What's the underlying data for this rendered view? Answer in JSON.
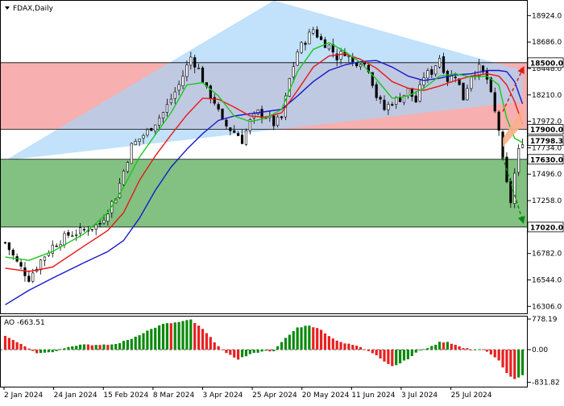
{
  "symbol": {
    "name": "FDAX,Daily",
    "arrow": "triangle-down-icon"
  },
  "colors": {
    "up": "#000000",
    "down": "#000000",
    "ma_fast": "#18c818",
    "ma_mid": "#e81818",
    "ma_slow": "#1818c8",
    "ao_up": "#0a8a0a",
    "ao_down": "#e82020",
    "zone_resistance": "#f47a7a",
    "zone_support": "#3f9f3f",
    "triangle": "#a8d4f8",
    "arrow_up": "#e81818",
    "arrow_down": "#0a8a0a",
    "projection": "#f7b08a",
    "label_bg": "#ffffff",
    "grid": "#000000"
  },
  "chart_data": [
    {
      "type": "candlestick",
      "title": "FDAX,Daily",
      "ylim": [
        16250,
        19050
      ],
      "y_ticks": [
        "18924.0",
        "18686.0",
        "18448.0",
        "18210.0",
        "17972.0",
        "17734.0",
        "17496.0",
        "17258.0",
        "16782.0",
        "16544.0",
        "16306.0"
      ],
      "x_ticks": [
        "2 Jan 2024",
        "24 Jan 2024",
        "15 Feb 2024",
        "8 Mar 2024",
        "3 Apr 2024",
        "25 Apr 2024",
        "20 May 2024",
        "11 Jun 2024",
        "3 Jul 2024",
        "25 Jul 2024"
      ],
      "levels": [
        {
          "label": "18500.0",
          "value": 18500
        },
        {
          "label": "17900.0",
          "value": 17900
        },
        {
          "label": "17630.0",
          "value": 17630
        },
        {
          "label": "17020.0",
          "value": 17020
        }
      ],
      "current_price": {
        "label": "17798.3",
        "value": 17798.3
      },
      "resistance_zone": [
        17900,
        18500
      ],
      "support_zone": [
        17020,
        17630
      ],
      "anchors": [
        [
          0,
          16880
        ],
        [
          3,
          16700
        ],
        [
          6,
          16560
        ],
        [
          9,
          16720
        ],
        [
          12,
          16850
        ],
        [
          16,
          16950
        ],
        [
          20,
          16990
        ],
        [
          24,
          17050
        ],
        [
          28,
          17300
        ],
        [
          32,
          17750
        ],
        [
          36,
          17880
        ],
        [
          40,
          18050
        ],
        [
          44,
          18300
        ],
        [
          47,
          18550
        ],
        [
          49,
          18440
        ],
        [
          51,
          18250
        ],
        [
          53,
          18150
        ],
        [
          55,
          17960
        ],
        [
          57,
          17900
        ],
        [
          59,
          17850
        ],
        [
          60,
          17800
        ],
        [
          62,
          17970
        ],
        [
          64,
          18050
        ],
        [
          66,
          18020
        ],
        [
          68,
          17950
        ],
        [
          70,
          18000
        ],
        [
          72,
          18350
        ],
        [
          74,
          18600
        ],
        [
          76,
          18700
        ],
        [
          78,
          18800
        ],
        [
          80,
          18700
        ],
        [
          82,
          18650
        ],
        [
          84,
          18550
        ],
        [
          86,
          18600
        ],
        [
          88,
          18500
        ],
        [
          90,
          18520
        ],
        [
          92,
          18450
        ],
        [
          94,
          18200
        ],
        [
          96,
          18080
        ],
        [
          98,
          18150
        ],
        [
          100,
          18180
        ],
        [
          102,
          18250
        ],
        [
          104,
          18150
        ],
        [
          106,
          18380
        ],
        [
          108,
          18420
        ],
        [
          110,
          18550
        ],
        [
          112,
          18350
        ],
        [
          114,
          18400
        ],
        [
          116,
          18180
        ],
        [
          118,
          18400
        ],
        [
          120,
          18450
        ],
        [
          122,
          18350
        ],
        [
          124,
          18050
        ],
        [
          125,
          17900
        ],
        [
          126,
          17600
        ],
        [
          127,
          17400
        ],
        [
          128,
          17250
        ],
        [
          129,
          17500
        ],
        [
          130,
          17700
        ],
        [
          131,
          17798
        ]
      ],
      "ma_fast": [
        [
          0,
          16750
        ],
        [
          6,
          16720
        ],
        [
          12,
          16800
        ],
        [
          20,
          16960
        ],
        [
          26,
          17150
        ],
        [
          30,
          17380
        ],
        [
          34,
          17650
        ],
        [
          38,
          17850
        ],
        [
          42,
          18050
        ],
        [
          46,
          18300
        ],
        [
          50,
          18320
        ],
        [
          54,
          18200
        ],
        [
          58,
          18020
        ],
        [
          62,
          17970
        ],
        [
          66,
          18000
        ],
        [
          70,
          18080
        ],
        [
          74,
          18420
        ],
        [
          78,
          18620
        ],
        [
          82,
          18680
        ],
        [
          86,
          18600
        ],
        [
          90,
          18500
        ],
        [
          94,
          18350
        ],
        [
          98,
          18180
        ],
        [
          102,
          18200
        ],
        [
          106,
          18270
        ],
        [
          110,
          18380
        ],
        [
          114,
          18400
        ],
        [
          118,
          18370
        ],
        [
          122,
          18380
        ],
        [
          125,
          18300
        ],
        [
          127,
          18000
        ],
        [
          129,
          17820
        ],
        [
          131,
          17780
        ]
      ],
      "ma_mid": [
        [
          0,
          16650
        ],
        [
          6,
          16620
        ],
        [
          12,
          16660
        ],
        [
          20,
          16850
        ],
        [
          26,
          16990
        ],
        [
          30,
          17150
        ],
        [
          34,
          17440
        ],
        [
          38,
          17660
        ],
        [
          42,
          17850
        ],
        [
          46,
          18030
        ],
        [
          50,
          18180
        ],
        [
          54,
          18170
        ],
        [
          58,
          18100
        ],
        [
          62,
          18020
        ],
        [
          66,
          18010
        ],
        [
          70,
          18050
        ],
        [
          74,
          18250
        ],
        [
          78,
          18460
        ],
        [
          82,
          18560
        ],
        [
          86,
          18580
        ],
        [
          90,
          18530
        ],
        [
          94,
          18450
        ],
        [
          98,
          18330
        ],
        [
          102,
          18270
        ],
        [
          106,
          18250
        ],
        [
          110,
          18290
        ],
        [
          114,
          18340
        ],
        [
          118,
          18380
        ],
        [
          122,
          18400
        ],
        [
          125,
          18380
        ],
        [
          127,
          18300
        ],
        [
          129,
          18150
        ],
        [
          131,
          17950
        ]
      ],
      "ma_slow": [
        [
          0,
          16320
        ],
        [
          6,
          16450
        ],
        [
          12,
          16560
        ],
        [
          20,
          16700
        ],
        [
          26,
          16800
        ],
        [
          30,
          16900
        ],
        [
          34,
          17100
        ],
        [
          38,
          17350
        ],
        [
          42,
          17560
        ],
        [
          46,
          17720
        ],
        [
          50,
          17860
        ],
        [
          54,
          17980
        ],
        [
          58,
          18020
        ],
        [
          62,
          18040
        ],
        [
          66,
          18060
        ],
        [
          70,
          18080
        ],
        [
          74,
          18200
        ],
        [
          78,
          18330
        ],
        [
          82,
          18430
        ],
        [
          86,
          18480
        ],
        [
          90,
          18510
        ],
        [
          94,
          18520
        ],
        [
          98,
          18460
        ],
        [
          102,
          18380
        ],
        [
          106,
          18340
        ],
        [
          110,
          18360
        ],
        [
          114,
          18390
        ],
        [
          118,
          18400
        ],
        [
          122,
          18430
        ],
        [
          125,
          18430
        ],
        [
          127,
          18420
        ],
        [
          129,
          18330
        ],
        [
          131,
          18130
        ]
      ],
      "triangle": [
        [
          0,
          17620
        ],
        [
          68,
          19060
        ],
        [
          131,
          18430
        ],
        [
          131,
          18150
        ]
      ],
      "arrows": {
        "up": {
          "from": [
            126,
            18060
          ],
          "to": [
            131,
            18440
          ]
        },
        "down": {
          "from": [
            126,
            17650
          ],
          "to": [
            131,
            17080
          ]
        }
      }
    },
    {
      "type": "bar",
      "title": "AO -663.51",
      "ylim": [
        -900,
        820
      ],
      "y_ticks": [
        "778.19",
        "0.00",
        "-831.82"
      ],
      "value": -663.51,
      "ao_anchors": [
        [
          0,
          350
        ],
        [
          4,
          150
        ],
        [
          8,
          -80
        ],
        [
          12,
          -60
        ],
        [
          16,
          80
        ],
        [
          20,
          140
        ],
        [
          24,
          110
        ],
        [
          28,
          140
        ],
        [
          32,
          280
        ],
        [
          36,
          480
        ],
        [
          40,
          650
        ],
        [
          44,
          700
        ],
        [
          47,
          760
        ],
        [
          50,
          520
        ],
        [
          53,
          200
        ],
        [
          56,
          -100
        ],
        [
          59,
          -240
        ],
        [
          62,
          -120
        ],
        [
          65,
          -40
        ],
        [
          68,
          -30
        ],
        [
          71,
          290
        ],
        [
          74,
          560
        ],
        [
          77,
          620
        ],
        [
          80,
          500
        ],
        [
          83,
          280
        ],
        [
          86,
          160
        ],
        [
          89,
          100
        ],
        [
          92,
          -30
        ],
        [
          94,
          -130
        ],
        [
          96,
          -300
        ],
        [
          98,
          -420
        ],
        [
          100,
          -340
        ],
        [
          102,
          -240
        ],
        [
          104,
          -80
        ],
        [
          106,
          20
        ],
        [
          108,
          80
        ],
        [
          110,
          190
        ],
        [
          112,
          200
        ],
        [
          114,
          120
        ],
        [
          116,
          40
        ],
        [
          118,
          10
        ],
        [
          121,
          10
        ],
        [
          123,
          -130
        ],
        [
          125,
          -280
        ],
        [
          127,
          -600
        ],
        [
          129,
          -760
        ],
        [
          131,
          -663
        ]
      ]
    }
  ]
}
